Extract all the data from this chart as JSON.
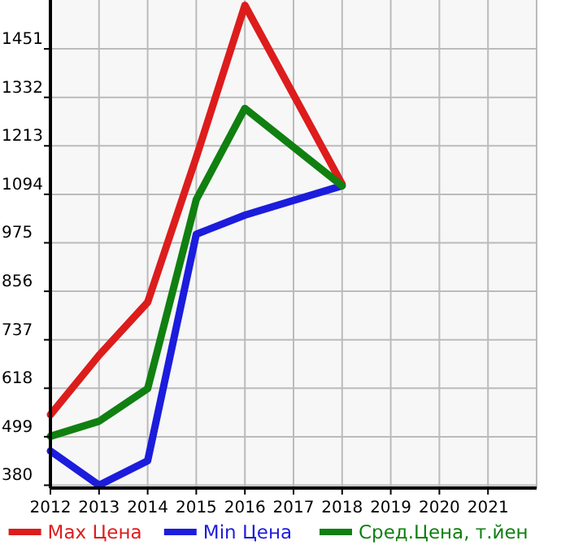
{
  "chart_data": {
    "type": "line",
    "xlim": [
      2012,
      2022
    ],
    "xticks": [
      2012,
      2013,
      2014,
      2015,
      2016,
      2017,
      2018,
      2019,
      2020,
      2021
    ],
    "ylim": [
      373,
      1571
    ],
    "yticks": [
      380,
      499,
      618,
      737,
      856,
      975,
      1094,
      1213,
      1332,
      1451
    ],
    "grid": true,
    "legend": "bottom",
    "series": [
      {
        "name": "Max Цена",
        "color": "#dd1c1c",
        "x": [
          2012,
          2013,
          2014,
          2015,
          2016,
          2018
        ],
        "values": [
          553,
          699,
          829,
          1185,
          1558,
          1119
        ]
      },
      {
        "name": "Min Цена",
        "color": "#1c1cdd",
        "x": [
          2012,
          2013,
          2014,
          2015,
          2016,
          2018
        ],
        "values": [
          464,
          380,
          440,
          996,
          1043,
          1115
        ]
      },
      {
        "name": "Сред.Цена, т.йен",
        "color": "#108010",
        "x": [
          2012,
          2013,
          2014,
          2015,
          2016,
          2018
        ],
        "values": [
          500,
          537,
          617,
          1081,
          1305,
          1115
        ]
      }
    ]
  }
}
